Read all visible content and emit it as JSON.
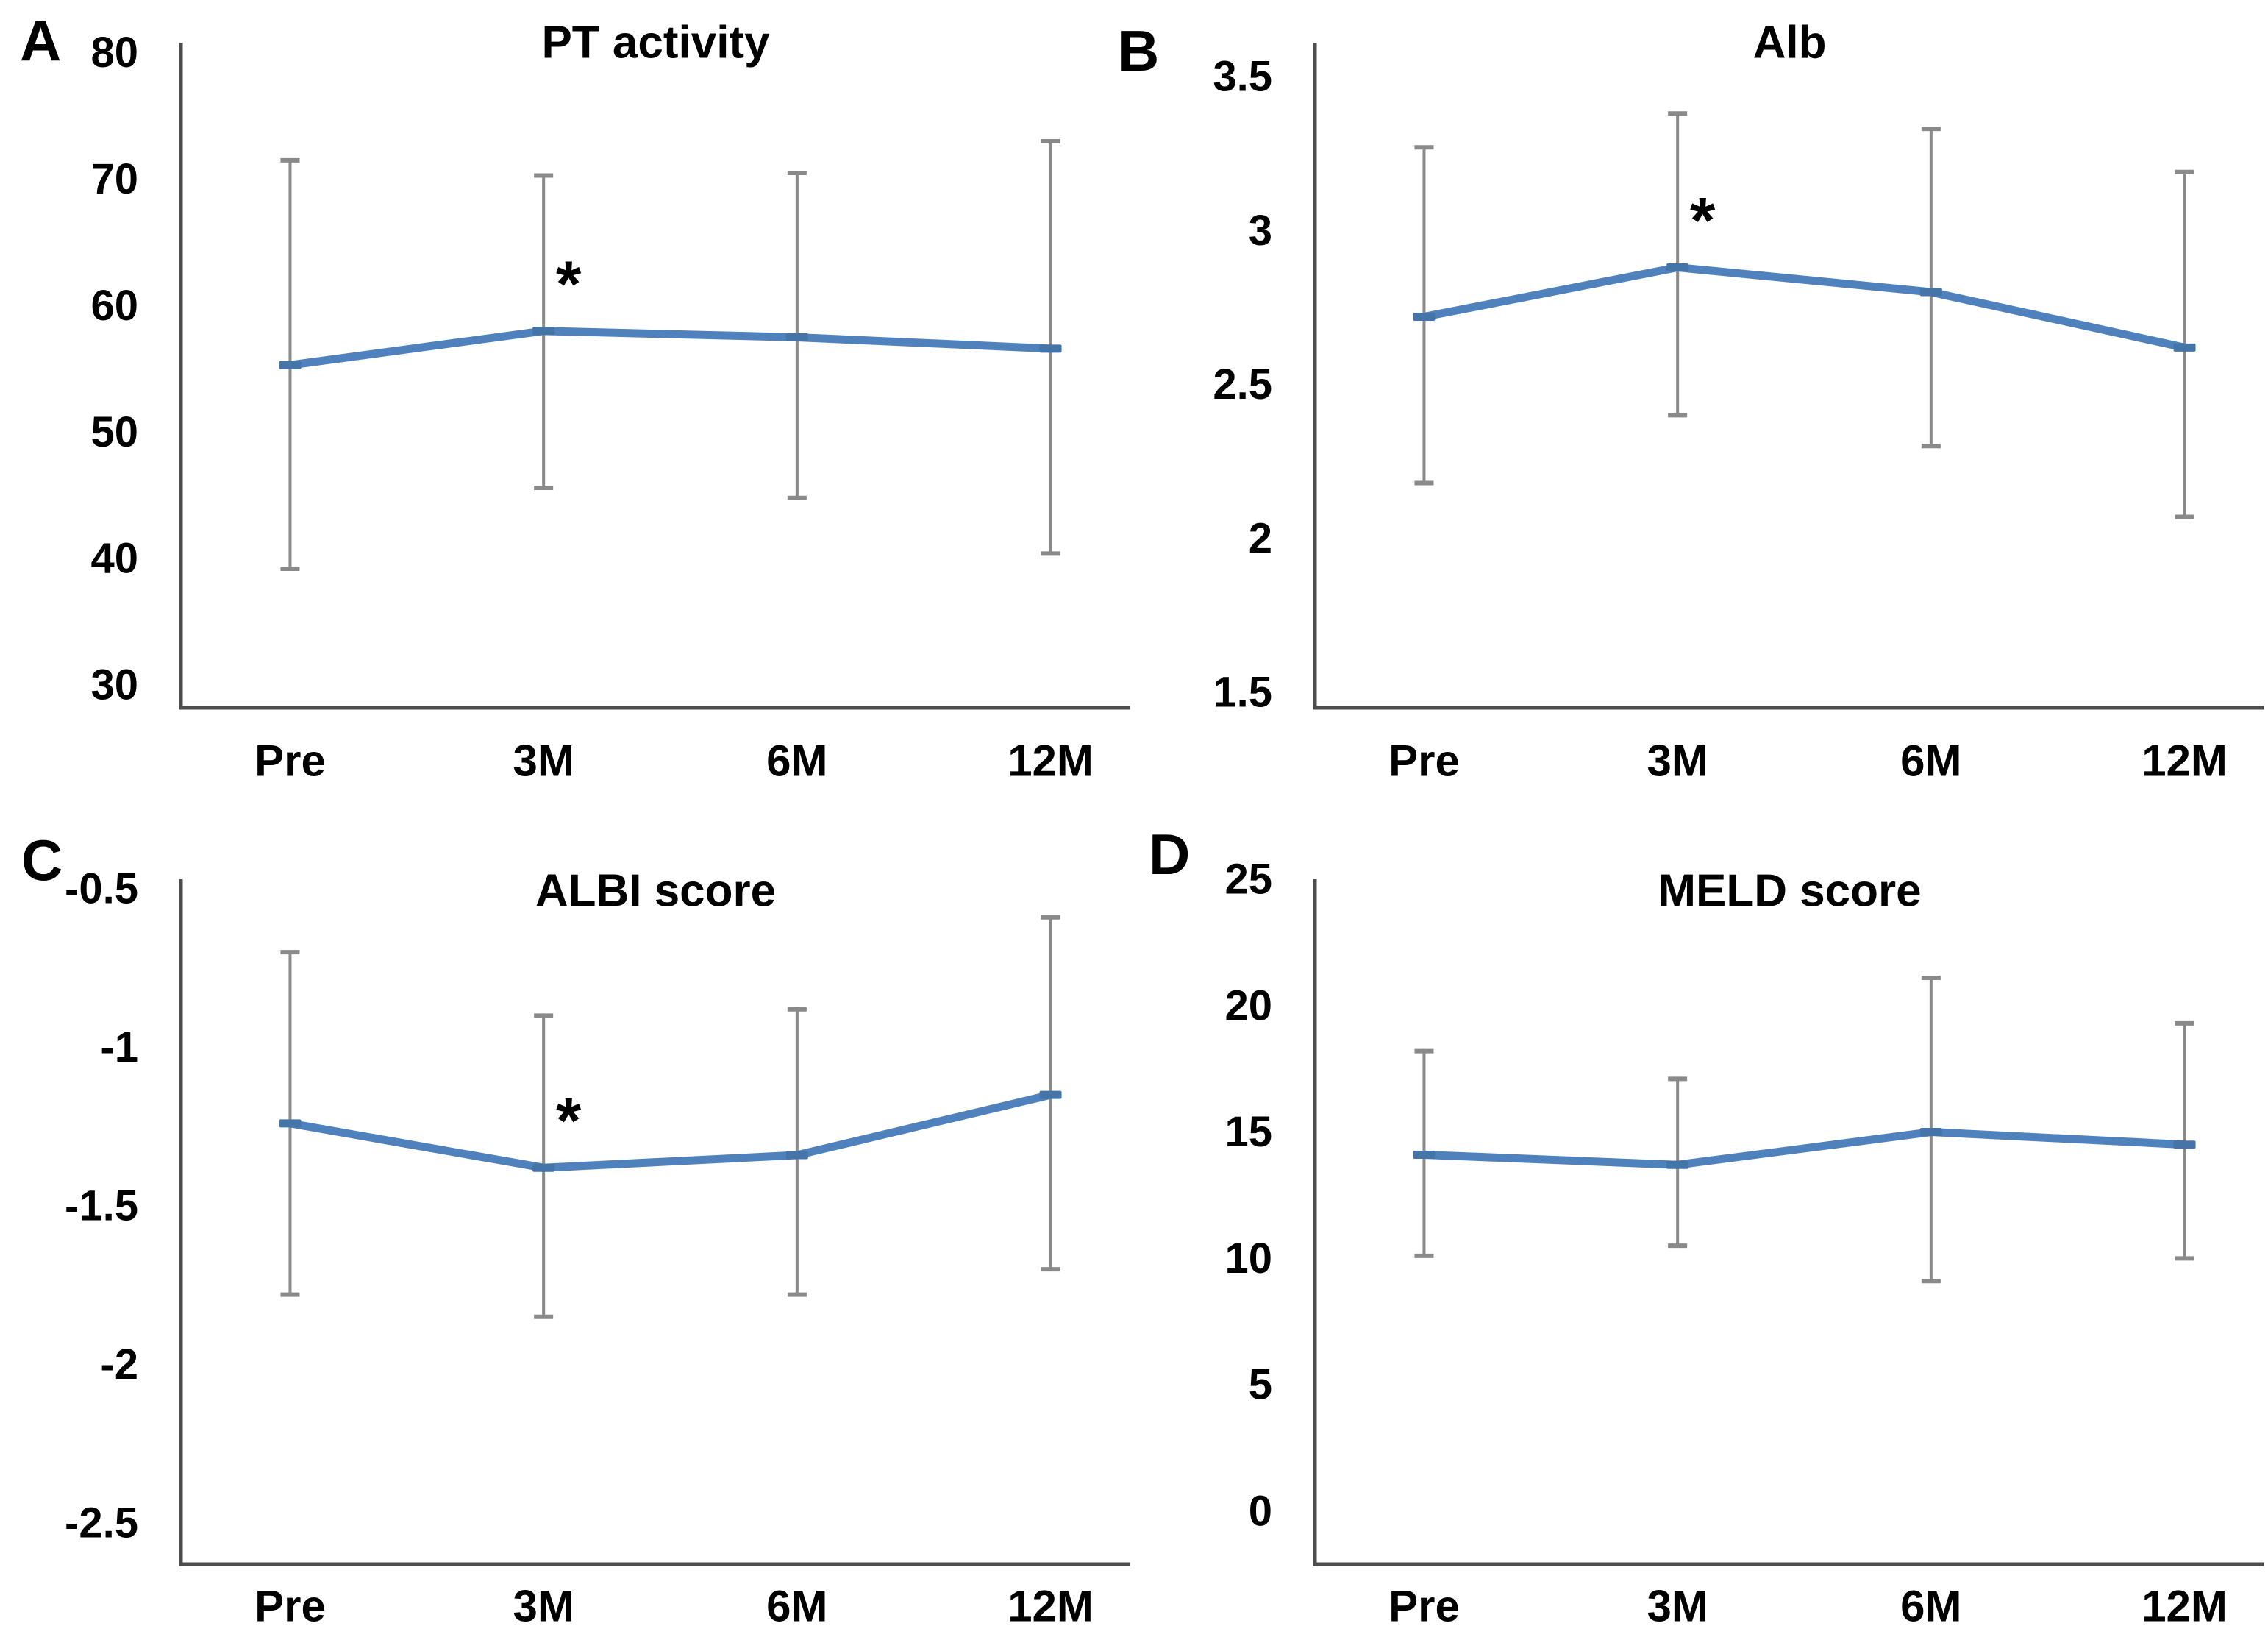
{
  "figure": {
    "background": "#ffffff",
    "series_color": "#4f81bd",
    "marker_color": "#4575a8",
    "error_bar_color": "#8a8a8a",
    "axis_color": "#4d4d4d",
    "label_color": "#000000",
    "significance_marker": "*"
  },
  "chart_data": [
    {
      "panel": "A",
      "type": "line",
      "title": "PT activity",
      "categories": [
        "Pre",
        "3M",
        "6M",
        "12M"
      ],
      "values": [
        55.3,
        58.0,
        57.5,
        56.6
      ],
      "error_low": [
        39.2,
        45.6,
        44.8,
        40.4
      ],
      "error_high": [
        71.5,
        70.3,
        70.5,
        73.0
      ],
      "significant_at": "3M",
      "y_ticks": [
        80,
        70,
        60,
        50,
        40,
        30
      ],
      "y_tick_labels": [
        "80",
        "70",
        "60",
        "50",
        "40",
        "30"
      ],
      "ylim": [
        28.2,
        80.8
      ],
      "xlabel": "",
      "ylabel": "",
      "grid": false,
      "legend": "none"
    },
    {
      "panel": "B",
      "type": "line",
      "title": "Alb",
      "categories": [
        "Pre",
        "3M",
        "6M",
        "12M"
      ],
      "values": [
        2.72,
        2.88,
        2.8,
        2.62
      ],
      "error_low": [
        2.18,
        2.4,
        2.3,
        2.07
      ],
      "error_high": [
        3.27,
        3.38,
        3.33,
        3.19
      ],
      "significant_at": "3M",
      "y_ticks": [
        3.5,
        3,
        2.5,
        2,
        1.5
      ],
      "y_tick_labels": [
        "3.5",
        "3",
        "2.5",
        "2",
        "1.5"
      ],
      "ylim": [
        1.45,
        3.61
      ],
      "xlabel": "",
      "ylabel": "",
      "grid": false,
      "legend": "none"
    },
    {
      "panel": "C",
      "type": "line",
      "title": "ALBI score",
      "categories": [
        "Pre",
        "3M",
        "6M",
        "12M"
      ],
      "values": [
        -1.24,
        -1.38,
        -1.34,
        -1.15
      ],
      "error_low": [
        -1.78,
        -1.85,
        -1.78,
        -1.7
      ],
      "error_high": [
        -0.7,
        -0.9,
        -0.88,
        -0.59
      ],
      "significant_at": "3M",
      "y_ticks": [
        -0.5,
        -1,
        -1.5,
        -2,
        -2.5
      ],
      "y_tick_labels": [
        "-0.5",
        "-1",
        "-1.5",
        "-2",
        "-2.5"
      ],
      "ylim": [
        -2.63,
        -0.47
      ],
      "xlabel": "",
      "ylabel": "",
      "grid": false,
      "legend": "none"
    },
    {
      "panel": "D",
      "type": "line",
      "title": "MELD score",
      "categories": [
        "Pre",
        "3M",
        "6M",
        "12M"
      ],
      "values": [
        14.1,
        13.7,
        15.0,
        14.5
      ],
      "error_low": [
        10.1,
        10.5,
        9.1,
        10.0
      ],
      "error_high": [
        18.2,
        17.1,
        21.1,
        19.3
      ],
      "significant_at": null,
      "y_ticks": [
        25,
        20,
        15,
        10,
        5,
        0
      ],
      "y_tick_labels": [
        "25",
        "20",
        "15",
        "10",
        "5",
        "0"
      ],
      "ylim": [
        -2.1,
        25.0
      ],
      "xlabel": "",
      "ylabel": "",
      "grid": false,
      "legend": "none"
    }
  ]
}
